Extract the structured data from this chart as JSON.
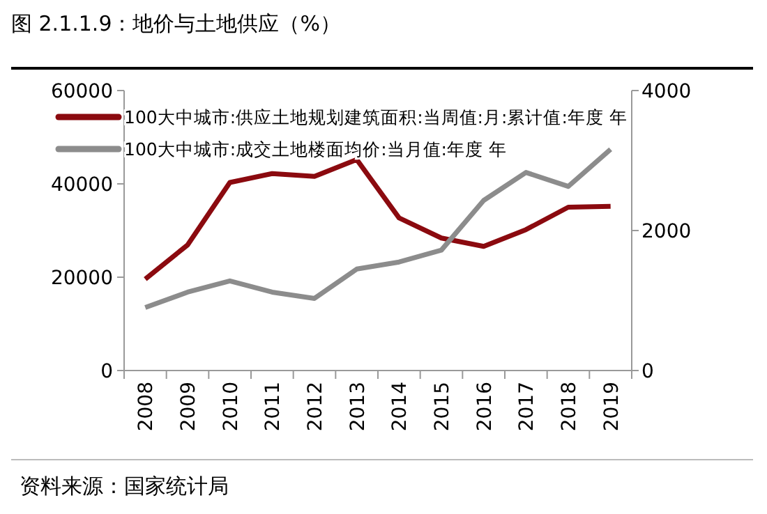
{
  "chart_data": {
    "type": "line",
    "title": "图 2.1.1.9：地价与土地供应（%）",
    "annotations": [
      "资料来源：国家统计局"
    ],
    "categories": [
      "2008",
      "2009",
      "2010",
      "2011",
      "2012",
      "2013",
      "2014",
      "2015",
      "2016",
      "2017",
      "2018",
      "2019"
    ],
    "series": [
      {
        "name": "100大中城市:供应土地规划建筑面积:当周值:月:累计值:年度 年",
        "color": "#8b0a0f",
        "values": [
          19600,
          26900,
          40300,
          42200,
          41600,
          45200,
          32700,
          28400,
          26600,
          30200,
          35000,
          35200
        ]
      },
      {
        "name": "100大中城市:成交土地楼面均价:当月值:年度 年",
        "color": "#8c8c8c",
        "axis": "y2",
        "values": [
          900,
          1120,
          1280,
          1120,
          1030,
          1450,
          1550,
          1720,
          2430,
          2830,
          2630,
          3160
        ]
      }
    ],
    "ylim": [
      0,
      60000
    ],
    "yticks": [
      0,
      20000,
      40000,
      60000
    ],
    "y2lim": [
      0,
      4000
    ],
    "y2ticks": [
      0,
      2000,
      4000
    ],
    "legend": "top left",
    "grid": false
  }
}
